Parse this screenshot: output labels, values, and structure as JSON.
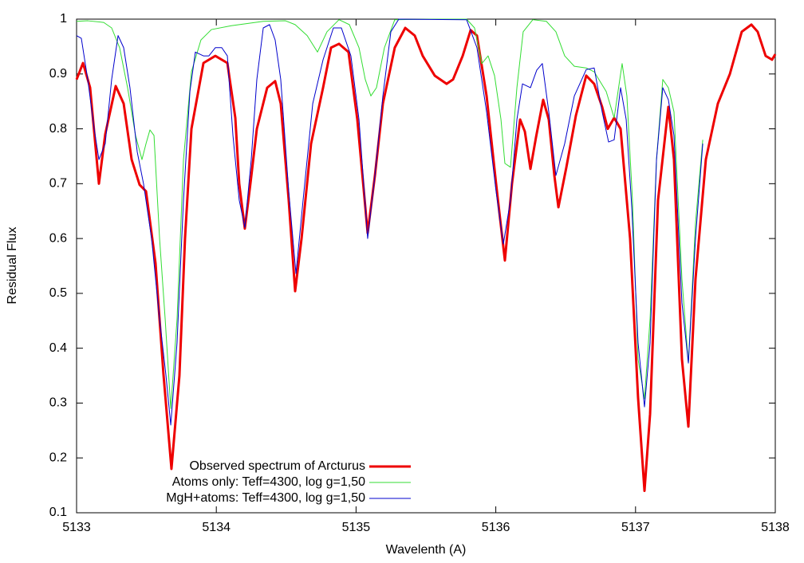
{
  "chart_data": {
    "type": "line",
    "x_label": "Wavelenth (A)",
    "y_label": "Residual Flux",
    "xlim": [
      5133,
      5138
    ],
    "xticks": [
      5133,
      5134,
      5135,
      5136,
      5137,
      5138
    ],
    "ylim": [
      0.1,
      1
    ],
    "yticks": [
      0.1,
      0.2,
      0.3,
      0.4,
      0.5,
      0.6,
      0.7,
      0.8,
      0.9,
      1
    ],
    "grid": false,
    "legend": "lower left",
    "series": [
      {
        "name": "Observed spectrum of Arcturus",
        "color": "#ee0000",
        "x": [
          5133.0,
          5133.046,
          5133.097,
          5133.16,
          5133.205,
          5133.28,
          5133.337,
          5133.394,
          5133.451,
          5133.497,
          5133.565,
          5133.622,
          5133.679,
          5133.736,
          5133.776,
          5133.822,
          5133.908,
          5133.993,
          5134.079,
          5134.136,
          5134.164,
          5134.204,
          5134.244,
          5134.29,
          5134.364,
          5134.421,
          5134.461,
          5134.518,
          5134.564,
          5134.61,
          5134.678,
          5134.764,
          5134.821,
          5134.878,
          5134.946,
          5135.009,
          5135.083,
          5135.135,
          5135.192,
          5135.277,
          5135.352,
          5135.42,
          5135.477,
          5135.563,
          5135.648,
          5135.694,
          5135.763,
          5135.82,
          5135.865,
          5135.934,
          5136.002,
          5136.065,
          5136.116,
          5136.174,
          5136.208,
          5136.248,
          5136.288,
          5136.339,
          5136.379,
          5136.419,
          5136.448,
          5136.505,
          5136.573,
          5136.647,
          5136.704,
          5136.761,
          5136.801,
          5136.847,
          5136.893,
          5136.961,
          5137.018,
          5137.064,
          5137.104,
          5137.161,
          5137.235,
          5137.275,
          5137.332,
          5137.378,
          5137.429,
          5137.503,
          5137.589,
          5137.675,
          5137.76,
          5137.829,
          5137.874,
          5137.931,
          5137.977,
          5138.0
        ],
        "values": [
          0.89,
          0.92,
          0.875,
          0.7,
          0.79,
          0.878,
          0.846,
          0.744,
          0.698,
          0.686,
          0.555,
          0.352,
          0.18,
          0.35,
          0.6,
          0.8,
          0.92,
          0.933,
          0.92,
          0.82,
          0.7,
          0.618,
          0.7,
          0.8,
          0.875,
          0.887,
          0.846,
          0.67,
          0.504,
          0.6,
          0.773,
          0.875,
          0.948,
          0.955,
          0.94,
          0.817,
          0.61,
          0.715,
          0.846,
          0.948,
          0.984,
          0.97,
          0.933,
          0.897,
          0.882,
          0.89,
          0.933,
          0.98,
          0.97,
          0.86,
          0.7,
          0.56,
          0.7,
          0.817,
          0.795,
          0.727,
          0.785,
          0.853,
          0.817,
          0.715,
          0.657,
          0.73,
          0.824,
          0.897,
          0.882,
          0.84,
          0.8,
          0.82,
          0.8,
          0.6,
          0.31,
          0.14,
          0.28,
          0.67,
          0.84,
          0.744,
          0.38,
          0.257,
          0.526,
          0.744,
          0.846,
          0.9,
          0.977,
          0.99,
          0.977,
          0.933,
          0.926,
          0.936
        ]
      },
      {
        "name": "Atoms only: Teff=4300, log g=1,50",
        "color": "#33dd33",
        "x": [
          5133.0,
          5133.08,
          5133.194,
          5133.251,
          5133.308,
          5133.365,
          5133.422,
          5133.468,
          5133.497,
          5133.525,
          5133.554,
          5133.594,
          5133.634,
          5133.674,
          5133.719,
          5133.765,
          5133.822,
          5133.89,
          5133.965,
          5134.107,
          5134.336,
          5134.495,
          5134.564,
          5134.65,
          5134.724,
          5134.792,
          5134.878,
          5134.952,
          5135.021,
          5135.066,
          5135.106,
          5135.146,
          5135.203,
          5135.277,
          5135.534,
          5135.791,
          5135.848,
          5135.9,
          5135.945,
          5135.991,
          5136.037,
          5136.065,
          5136.105,
          5136.151,
          5136.196,
          5136.265,
          5136.362,
          5136.43,
          5136.493,
          5136.562,
          5136.647,
          5136.704,
          5136.79,
          5136.847,
          5136.904,
          5136.938,
          5136.978,
          5137.018,
          5137.064,
          5137.104,
          5137.15,
          5137.195,
          5137.235,
          5137.275,
          5137.332,
          5137.378,
          5137.429,
          5137.481
        ],
        "values": [
          0.996,
          0.997,
          0.994,
          0.984,
          0.948,
          0.875,
          0.788,
          0.744,
          0.773,
          0.798,
          0.788,
          0.6,
          0.453,
          0.29,
          0.453,
          0.744,
          0.904,
          0.962,
          0.981,
          0.988,
          0.996,
          0.997,
          0.99,
          0.97,
          0.94,
          0.977,
          0.999,
          0.99,
          0.948,
          0.89,
          0.86,
          0.875,
          0.948,
          0.999,
          1.0,
          1.0,
          0.984,
          0.919,
          0.933,
          0.897,
          0.817,
          0.737,
          0.73,
          0.875,
          0.977,
          0.999,
          0.996,
          0.977,
          0.933,
          0.914,
          0.911,
          0.904,
          0.868,
          0.82,
          0.919,
          0.86,
          0.67,
          0.38,
          0.308,
          0.453,
          0.744,
          0.89,
          0.875,
          0.831,
          0.526,
          0.373,
          0.628,
          0.78
        ]
      },
      {
        "name": "MgH+atoms: Teff=4300, log g=1,50",
        "color": "#0000cc",
        "x": [
          5133.0,
          5133.034,
          5133.08,
          5133.126,
          5133.16,
          5133.205,
          5133.251,
          5133.297,
          5133.337,
          5133.382,
          5133.434,
          5133.479,
          5133.537,
          5133.594,
          5133.639,
          5133.674,
          5133.719,
          5133.765,
          5133.811,
          5133.85,
          5133.908,
          5133.947,
          5133.993,
          5134.039,
          5134.079,
          5134.119,
          5134.164,
          5134.204,
          5134.25,
          5134.29,
          5134.336,
          5134.381,
          5134.421,
          5134.461,
          5134.518,
          5134.57,
          5134.621,
          5134.69,
          5134.764,
          5134.838,
          5134.895,
          5134.963,
          5135.021,
          5135.083,
          5135.135,
          5135.192,
          5135.249,
          5135.306,
          5135.791,
          5135.865,
          5135.934,
          5136.002,
          5136.054,
          5136.105,
          5136.151,
          5136.191,
          5136.248,
          5136.293,
          5136.333,
          5136.379,
          5136.43,
          5136.493,
          5136.562,
          5136.647,
          5136.704,
          5136.761,
          5136.807,
          5136.847,
          5136.893,
          5136.933,
          5136.973,
          5137.018,
          5137.064,
          5137.104,
          5137.15,
          5137.195,
          5137.235,
          5137.275,
          5137.332,
          5137.378,
          5137.429,
          5137.481
        ],
        "values": [
          0.97,
          0.965,
          0.89,
          0.8,
          0.744,
          0.773,
          0.89,
          0.97,
          0.948,
          0.875,
          0.758,
          0.7,
          0.6,
          0.453,
          0.352,
          0.26,
          0.41,
          0.67,
          0.868,
          0.94,
          0.933,
          0.933,
          0.948,
          0.948,
          0.933,
          0.788,
          0.67,
          0.62,
          0.744,
          0.89,
          0.984,
          0.99,
          0.962,
          0.89,
          0.686,
          0.536,
          0.67,
          0.846,
          0.926,
          0.984,
          0.984,
          0.933,
          0.817,
          0.6,
          0.715,
          0.86,
          0.977,
          1.0,
          0.999,
          0.948,
          0.831,
          0.686,
          0.59,
          0.67,
          0.817,
          0.882,
          0.875,
          0.907,
          0.919,
          0.831,
          0.715,
          0.773,
          0.86,
          0.908,
          0.911,
          0.831,
          0.776,
          0.78,
          0.875,
          0.817,
          0.657,
          0.41,
          0.293,
          0.41,
          0.744,
          0.875,
          0.853,
          0.788,
          0.483,
          0.373,
          0.6,
          0.773
        ]
      }
    ]
  }
}
